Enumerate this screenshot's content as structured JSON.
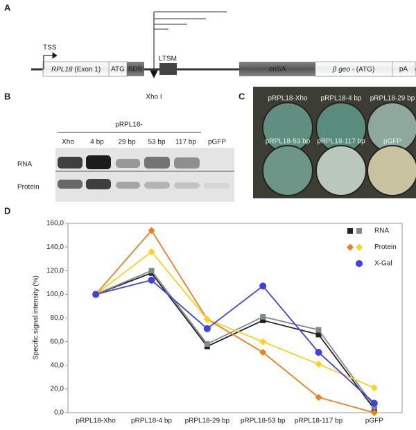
{
  "diagram": {
    "label": "A",
    "tss": "TSS",
    "exon_name": "RPL18",
    "exon_suffix": "(Exon 1)",
    "atg": "ATG",
    "sds": "SDS",
    "ltsm": "LTSM",
    "site": "Xho I",
    "ensa": "enSA",
    "bgeo_name": "β geo",
    "bgeo_suffix": "- (ATG)",
    "pa": "pA"
  },
  "gel": {
    "label": "B",
    "header": "pRPL18-",
    "lanes": [
      "Xho",
      "4 bp",
      "29 bp",
      "53 bp",
      "117 bp",
      "pGFP"
    ],
    "rows": [
      "RNA",
      "Protein"
    ]
  },
  "wells": {
    "label": "C",
    "names": [
      "pRPL18-Xho",
      "pRPL18-4 bp",
      "pRPL18-29 bp",
      "pRPL18-53 bp",
      "pRPL18-117 bp",
      "pGFP"
    ]
  },
  "chart_data": {
    "type": "line",
    "label": "D",
    "y_label": "Specific signal intensity (%)",
    "categories": [
      "pRPL18-Xho",
      "pRPL18-4 bp",
      "pRPL18-29 bp",
      "pRPL18-53 bp",
      "pRPL18-117 bp",
      "pGFP"
    ],
    "ylim": [
      0,
      160
    ],
    "yticks": [
      {
        "value": 0,
        "label": "0,0"
      },
      {
        "value": 20,
        "label": "20,0"
      },
      {
        "value": 40,
        "label": "40,0"
      },
      {
        "value": 60,
        "label": "60,0"
      },
      {
        "value": 80,
        "label": "80,0"
      },
      {
        "value": 100,
        "label": "100,0"
      },
      {
        "value": 120,
        "label": "120,0"
      },
      {
        "value": 140,
        "label": "140,0"
      },
      {
        "value": 160,
        "label": "160,0"
      }
    ],
    "series": [
      {
        "name": "RNA",
        "marker": "square",
        "lines": [
          {
            "color": "#222222",
            "values": [
              100,
              118,
              56,
              78,
              66,
              3
            ]
          },
          {
            "color": "#7f8c8a",
            "values": [
              100,
              120,
              58,
              81,
              70,
              5
            ]
          }
        ]
      },
      {
        "name": "Protein",
        "marker": "diamond",
        "lines": [
          {
            "color": "#f07f1a",
            "values": [
              100,
              154,
              79,
              51,
              13,
              0
            ]
          },
          {
            "color": "#ffd21a",
            "values": [
              100,
              136,
              79,
              60,
              41,
              21
            ]
          }
        ]
      },
      {
        "name": "X-Gal",
        "marker": "circle",
        "lines": [
          {
            "color": "#3f3fee",
            "values": [
              100,
              112,
              71,
              107,
              51,
              8
            ]
          }
        ]
      }
    ]
  }
}
